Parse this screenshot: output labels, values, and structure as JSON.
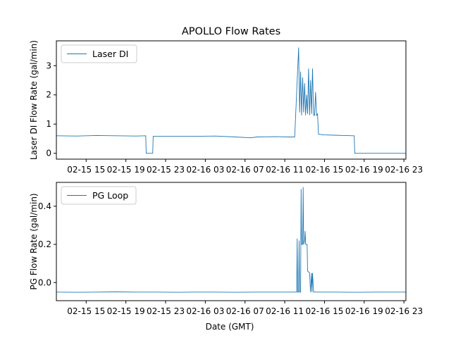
{
  "chart_data": {
    "type": "line",
    "title": "APOLLO Flow Rates",
    "xlabel": "Date (GMT)",
    "x_tick_labels": [
      "02-15 15",
      "02-15 19",
      "02-15 23",
      "02-16 03",
      "02-16 07",
      "02-16 11",
      "02-16 15",
      "02-16 19",
      "02-16 23"
    ],
    "x_tick_hours": [
      15,
      19,
      23,
      27,
      31,
      35,
      39,
      43,
      47
    ],
    "xlim_hours": [
      12.0,
      47.2
    ],
    "colors": {
      "series": "#1f77b4",
      "axes": "#000000"
    },
    "panels": [
      {
        "id": "top",
        "ylabel": "Laser DI Flow Rate (gal/min)",
        "ylim": [
          -0.2,
          3.85
        ],
        "y_ticks": [
          0,
          1,
          2,
          3
        ],
        "legend": {
          "label": "Laser DI",
          "placement": "top-left"
        },
        "series": [
          {
            "name": "Laser DI",
            "x_hours": [
              12.0,
              14.0,
              16.0,
              18.0,
              20.0,
              21.0,
              21.05,
              21.7,
              21.75,
              24.0,
              26.0,
              28.0,
              30.0,
              31.6,
              32.2,
              34.0,
              35.6,
              36.0,
              36.4,
              36.5,
              36.6,
              36.7,
              36.8,
              36.9,
              37.0,
              37.1,
              37.2,
              37.3,
              37.4,
              37.5,
              37.6,
              37.7,
              37.8,
              37.9,
              38.0,
              38.1,
              38.2,
              38.3,
              38.4,
              39.0,
              40.0,
              41.0,
              41.9,
              42.0,
              42.05,
              44.0,
              46.0,
              47.2
            ],
            "y": [
              0.6,
              0.59,
              0.61,
              0.6,
              0.59,
              0.6,
              0.0,
              0.0,
              0.58,
              0.58,
              0.58,
              0.59,
              0.56,
              0.53,
              0.56,
              0.57,
              0.56,
              0.56,
              3.62,
              1.4,
              2.8,
              1.3,
              2.6,
              1.4,
              2.4,
              1.3,
              2.0,
              1.35,
              2.9,
              1.3,
              2.5,
              1.35,
              2.9,
              1.3,
              1.3,
              2.1,
              1.3,
              1.35,
              0.65,
              0.63,
              0.62,
              0.61,
              0.6,
              0.6,
              0.0,
              0.0,
              0.0,
              0.0
            ]
          }
        ]
      },
      {
        "id": "bottom",
        "ylabel": "PG Flow Rate (gal/min)",
        "ylim": [
          -0.095,
          0.525
        ],
        "y_ticks": [
          0.0,
          0.2,
          0.4
        ],
        "legend": {
          "label": "PG Loop",
          "placement": "top-left"
        },
        "series": [
          {
            "name": "PG Loop",
            "x_hours": [
              12.0,
              14.0,
              16.0,
              18.0,
              20.0,
              22.0,
              24.0,
              26.0,
              28.0,
              30.0,
              32.0,
              34.0,
              36.0,
              36.2,
              36.25,
              36.3,
              36.4,
              36.45,
              36.5,
              36.6,
              36.65,
              36.7,
              36.8,
              36.85,
              36.9,
              37.0,
              37.05,
              37.1,
              37.2,
              37.25,
              37.3,
              37.4,
              37.45,
              37.5,
              37.6,
              37.7,
              37.75,
              37.8,
              37.9,
              38.0,
              38.5,
              40.0,
              42.0,
              44.0,
              46.0,
              47.2
            ],
            "y": [
              -0.05,
              -0.051,
              -0.05,
              -0.049,
              -0.05,
              -0.05,
              -0.051,
              -0.05,
              -0.05,
              -0.051,
              -0.05,
              -0.05,
              -0.05,
              -0.05,
              0.23,
              -0.05,
              -0.05,
              0.22,
              -0.05,
              -0.05,
              0.49,
              0.2,
              0.2,
              0.5,
              0.2,
              0.22,
              0.27,
              0.2,
              0.2,
              0.2,
              0.06,
              0.055,
              0.055,
              0.05,
              -0.05,
              0.05,
              -0.05,
              0.05,
              -0.05,
              -0.05,
              -0.05,
              -0.05,
              -0.051,
              -0.05,
              -0.05,
              -0.05
            ]
          }
        ]
      }
    ]
  }
}
